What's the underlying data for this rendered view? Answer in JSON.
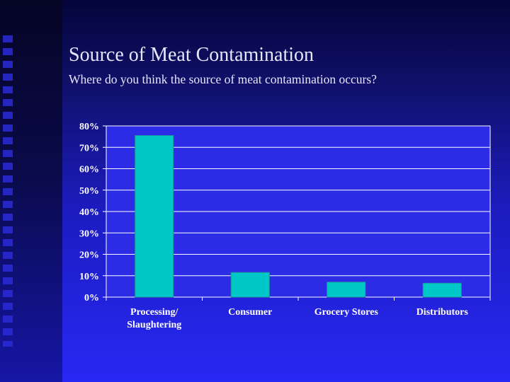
{
  "slide": {
    "title": "Source of Meat Contamination",
    "subtitle": "Where  do you think the source of meat contamination occurs?"
  },
  "colors": {
    "bar": "#00c8c8",
    "bar_edge": "#1a9a9a",
    "plot_bg": "#2c2ce6",
    "gridline": "#ffffff",
    "text": "#ffffff"
  },
  "chart_data": {
    "type": "bar",
    "title": "",
    "xlabel": "",
    "ylabel": "",
    "categories": [
      [
        "Processing/",
        "Slaughtering"
      ],
      [
        "Consumer"
      ],
      [
        "Grocery Stores"
      ],
      [
        "Distributors"
      ]
    ],
    "values": [
      75.5,
      11.5,
      7.0,
      6.5
    ],
    "ylim": [
      0,
      80
    ],
    "yticks": [
      0,
      10,
      20,
      30,
      40,
      50,
      60,
      70,
      80
    ],
    "ytick_labels": [
      "0%",
      "10%",
      "20%",
      "30%",
      "40%",
      "50%",
      "60%",
      "70%",
      "80%"
    ],
    "grid": true,
    "legend": "none"
  }
}
